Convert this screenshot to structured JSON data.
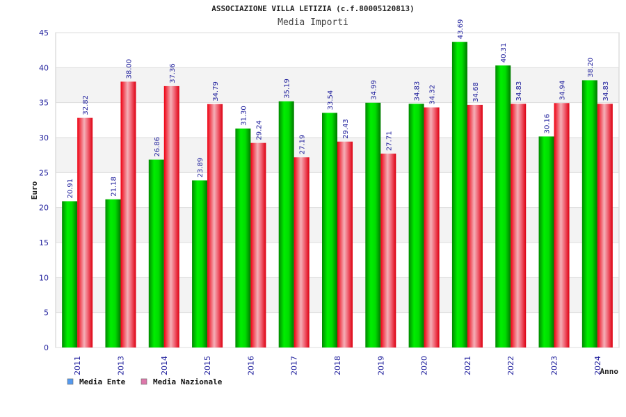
{
  "chart_data": {
    "type": "bar",
    "title": "ASSOCIAZIONE VILLA LETIZIA (c.f.80005120813)",
    "subtitle": "Media Importi",
    "xlabel": "Anno",
    "ylabel": "Euro",
    "ylim": [
      0,
      45
    ],
    "yticks": [
      0,
      5,
      10,
      15,
      20,
      25,
      30,
      35,
      40,
      45
    ],
    "grid": true,
    "legend_position": "bottom-left",
    "categories": [
      "2011",
      "2013",
      "2014",
      "2015",
      "2016",
      "2017",
      "2018",
      "2019",
      "2020",
      "2021",
      "2022",
      "2023",
      "2024"
    ],
    "series": [
      {
        "name": "Media Ente",
        "color": "#00cc00",
        "legend_color": "#5599ee",
        "values": [
          "20.91",
          "21.18",
          "26.86",
          "23.89",
          "31.30",
          "35.19",
          "33.54",
          "34.99",
          "34.83",
          "43.69",
          "40.31",
          "30.16",
          "38.20"
        ]
      },
      {
        "name": "Media Nazionale",
        "color": "#ee1122",
        "legend_color": "#dd77aa",
        "values": [
          "32.82",
          "38.00",
          "37.36",
          "34.79",
          "29.24",
          "27.19",
          "29.43",
          "27.71",
          "34.32",
          "34.68",
          "34.83",
          "34.94",
          "34.83"
        ]
      }
    ]
  }
}
